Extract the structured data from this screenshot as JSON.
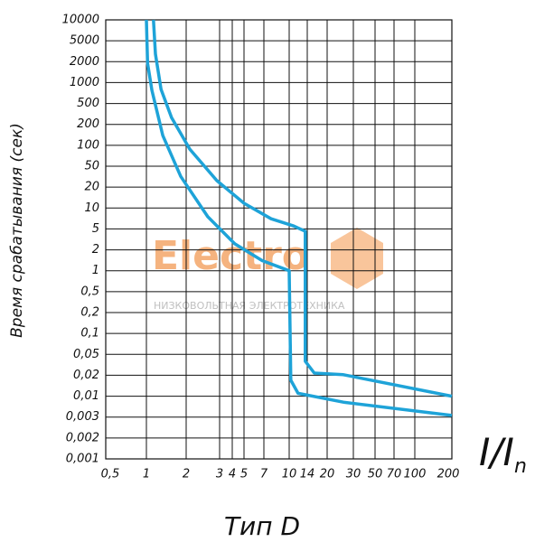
{
  "chart_data": {
    "type": "line",
    "y_label": "Время срабатывания (сек)",
    "x_label": "I/I",
    "x_label_sub": "n",
    "title": "Тип D",
    "watermark": "Electro",
    "watermark_sub": "НИЗКОВОЛЬТНАЯ ЭЛЕКТРОТЕХНИКА",
    "log_scale": true,
    "grid": true,
    "xlim": [
      0.5,
      200
    ],
    "ylim": [
      0.001,
      10000
    ],
    "xticks": [
      {
        "value": 0.5,
        "label": "0,5"
      },
      1,
      2,
      3,
      4,
      5,
      7,
      10,
      14,
      20,
      30,
      50,
      70,
      100,
      200
    ],
    "yticks": [
      10000,
      5000,
      2000,
      1000,
      500,
      200,
      100,
      50,
      20,
      10,
      5,
      2,
      1,
      {
        "value": 0.5,
        "label": "0,5"
      },
      {
        "value": 0.2,
        "label": "0,2"
      },
      {
        "value": 0.1,
        "label": "0,1"
      },
      {
        "value": 0.05,
        "label": "0,05"
      },
      {
        "value": 0.02,
        "label": "0,02"
      },
      {
        "value": 0.01,
        "label": "0,01"
      },
      {
        "value": 0.003,
        "label": "0,003"
      },
      {
        "value": 0.002,
        "label": "0,002"
      },
      {
        "value": 0.001,
        "label": "0,001"
      }
    ],
    "series": [
      {
        "color": "#1ea3d8",
        "x": [
          1.13,
          1.17,
          1.29,
          1.55,
          2.09,
          2.9,
          5,
          7.75,
          10.9,
          13.5,
          13.5,
          15.9,
          25.7,
          200
        ],
        "values": [
          10000,
          2800,
          800,
          270,
          88,
          26.6,
          11.7,
          7,
          5.5,
          4.5,
          0.037,
          0.022,
          0.0205,
          0.01
        ]
      },
      {
        "color": "#1ea3d8",
        "x": [
          1,
          1.02,
          1.1,
          1.33,
          1.82,
          2.6,
          4.2,
          6.8,
          10,
          10.3,
          11.8,
          25.7,
          200
        ],
        "values": [
          10000,
          1900,
          774,
          139,
          32,
          7.5,
          2.6,
          1.4,
          1,
          0.017,
          0.011,
          0.0071,
          0.0033
        ]
      }
    ]
  }
}
